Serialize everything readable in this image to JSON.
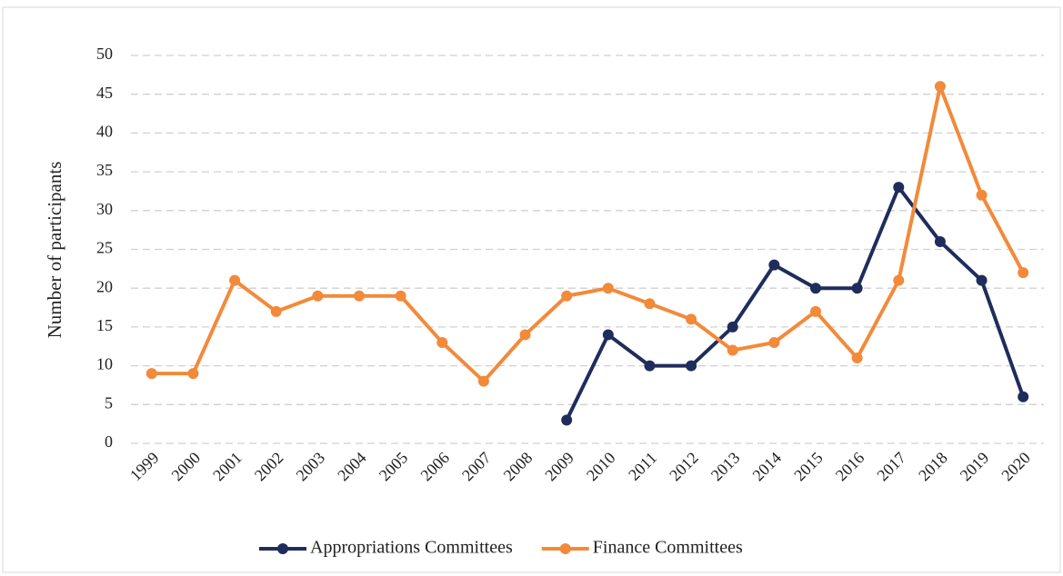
{
  "chart_data": {
    "type": "line",
    "y_label": "Number of participants",
    "categories": [
      "1999",
      "2000",
      "2001",
      "2002",
      "2003",
      "2004",
      "2005",
      "2006",
      "2007",
      "2008",
      "2009",
      "2010",
      "2011",
      "2012",
      "2013",
      "2014",
      "2015",
      "2016",
      "2017",
      "2018",
      "2019",
      "2020"
    ],
    "series": [
      {
        "name": "Appropriations Committees",
        "color": "#1f2d5c",
        "values": [
          null,
          null,
          null,
          null,
          null,
          null,
          null,
          null,
          null,
          null,
          3,
          14,
          10,
          10,
          15,
          23,
          20,
          20,
          33,
          26,
          21,
          6
        ]
      },
      {
        "name": "Finance Committees",
        "color": "#f28a3a",
        "values": [
          9,
          9,
          21,
          17,
          19,
          19,
          19,
          13,
          8,
          14,
          19,
          20,
          18,
          16,
          12,
          13,
          17,
          11,
          21,
          46,
          32,
          22
        ]
      }
    ],
    "ylim": [
      0,
      50
    ],
    "yticks": [
      0,
      5,
      10,
      15,
      20,
      25,
      30,
      35,
      40,
      45,
      50
    ],
    "grid": true,
    "legend": "bottom"
  }
}
